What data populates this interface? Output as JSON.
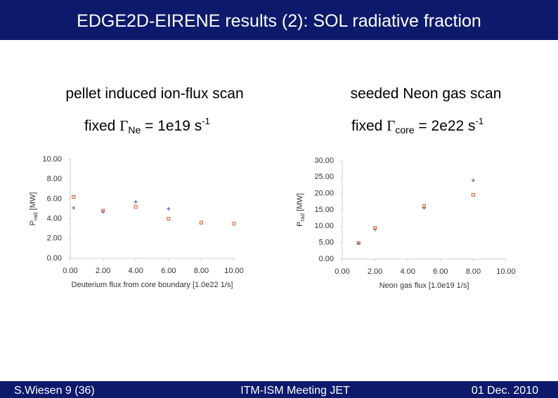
{
  "slide": {
    "title": "EDGE2D-EIRENE results (2): SOL radiative fraction",
    "left": {
      "heading": "pellet induced ion-flux scan",
      "subheading": {
        "text": "fixed ",
        "symbol": "Γ",
        "subscript": "Ne",
        "text2": " = 1e19 s",
        "superscript": "-1"
      }
    },
    "right": {
      "heading": "seeded Neon gas scan",
      "subheading": {
        "text": "fixed ",
        "symbol": "Γ",
        "subscript": "core",
        "text2": " = 2e22 s",
        "superscript": "-1"
      }
    },
    "footer": {
      "left": "S.Wiesen  9 (36)",
      "center": "ITM-ISM Meeting JET",
      "right": "01 Dec. 2010"
    }
  },
  "chart_data": [
    {
      "type": "scatter",
      "xlabel": "Deuterium flux from core boundary [1.0e22 1/s]",
      "ylabel": {
        "text": "P",
        "subscript": "rad",
        "unit": " [MW]"
      },
      "xlim": [
        0,
        10
      ],
      "ylim": [
        0,
        10
      ],
      "xticks": [
        {
          "value": 0,
          "label": "0.00"
        },
        {
          "value": 2,
          "label": "2.00"
        },
        {
          "value": 4,
          "label": "4.00"
        },
        {
          "value": 6,
          "label": "6.00"
        },
        {
          "value": 8,
          "label": "8.00"
        },
        {
          "value": 10,
          "label": "10.00"
        }
      ],
      "yticks": [
        {
          "value": 0,
          "label": "0.00"
        },
        {
          "value": 2,
          "label": "2.00"
        },
        {
          "value": 4,
          "label": "4.00"
        },
        {
          "value": 6,
          "label": "6.00"
        },
        {
          "value": 8,
          "label": "8.00"
        },
        {
          "value": 10,
          "label": "10.00"
        }
      ],
      "grid": false,
      "series": [
        {
          "color": "#5a6fc0",
          "marker": "plus",
          "x": [
            0.2,
            2,
            4,
            6
          ],
          "values": [
            5.1,
            4.7,
            5.7,
            5.0
          ]
        },
        {
          "color": "#e8704a",
          "marker": "square",
          "x": [
            0.2,
            2,
            4,
            6,
            8,
            10
          ],
          "values": [
            6.2,
            4.8,
            5.2,
            4.0,
            3.6,
            3.5
          ]
        }
      ]
    },
    {
      "type": "scatter",
      "xlabel": "Neon gas flux [1.0e19 1/s]",
      "ylabel": {
        "text": "P",
        "subscript": "rad",
        "unit": " [MW]"
      },
      "xlim": [
        0,
        10
      ],
      "ylim": [
        0,
        30
      ],
      "xticks": [
        {
          "value": 0,
          "label": "0.00"
        },
        {
          "value": 2,
          "label": "2.00"
        },
        {
          "value": 4,
          "label": "4.00"
        },
        {
          "value": 6,
          "label": "6.00"
        },
        {
          "value": 8,
          "label": "8.00"
        },
        {
          "value": 10,
          "label": "10.00"
        }
      ],
      "yticks": [
        {
          "value": 0,
          "label": "0.00"
        },
        {
          "value": 5,
          "label": "5.00"
        },
        {
          "value": 10,
          "label": "10.00"
        },
        {
          "value": 15,
          "label": "15.00"
        },
        {
          "value": 20,
          "label": "20.00"
        },
        {
          "value": 25,
          "label": "25.00"
        },
        {
          "value": 30,
          "label": "30.00"
        }
      ],
      "grid": false,
      "series": [
        {
          "color": "#5a6fc0",
          "marker": "plus",
          "x": [
            1,
            2,
            5,
            8
          ],
          "values": [
            4.8,
            9.0,
            15.6,
            24.0
          ]
        },
        {
          "color": "#e8704a",
          "marker": "square",
          "x": [
            1,
            2,
            5,
            8
          ],
          "values": [
            4.9,
            9.5,
            16.2,
            19.6
          ]
        }
      ]
    }
  ]
}
